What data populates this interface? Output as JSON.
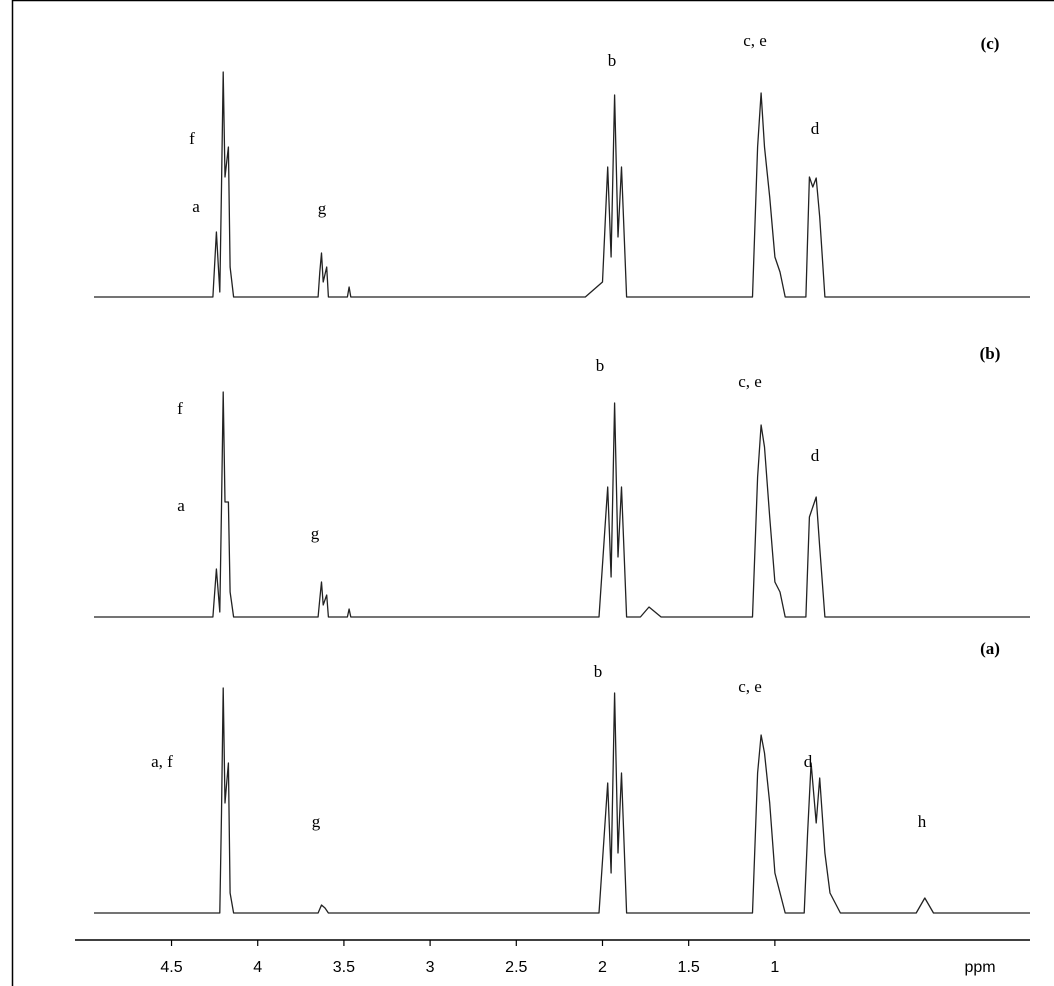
{
  "chart_data": [
    {
      "type": "line",
      "title": "(c)",
      "color": "#222",
      "ylim": [
        0,
        250
      ],
      "x": [
        4.95,
        4.26,
        4.24,
        4.22,
        4.21,
        4.2,
        4.19,
        4.17,
        4.16,
        4.14,
        3.65,
        3.64,
        3.63,
        3.62,
        3.6,
        3.59,
        3.48,
        3.47,
        3.46,
        2.1,
        2.0,
        1.97,
        1.95,
        1.93,
        1.91,
        1.89,
        1.86,
        1.13,
        1.1,
        1.08,
        1.06,
        1.03,
        1.0,
        0.97,
        0.94,
        0.82,
        0.8,
        0.78,
        0.76,
        0.74,
        0.71,
        -0.48
      ],
      "values": [
        0,
        0,
        65,
        5,
        110,
        225,
        120,
        150,
        30,
        0,
        0,
        25,
        44,
        15,
        30,
        0,
        0,
        10,
        0,
        0,
        15,
        130,
        40,
        202,
        60,
        130,
        0,
        0,
        150,
        204,
        150,
        100,
        40,
        25,
        0,
        0,
        120,
        110,
        119,
        80,
        0,
        0
      ],
      "annotations": [
        "f",
        "a",
        "g",
        "b",
        "c, e",
        "d"
      ]
    },
    {
      "type": "line",
      "title": "(b)",
      "color": "#222",
      "ylim": [
        0,
        250
      ],
      "x": [
        4.95,
        4.26,
        4.24,
        4.22,
        4.21,
        4.2,
        4.19,
        4.17,
        4.16,
        4.14,
        3.65,
        3.64,
        3.63,
        3.62,
        3.6,
        3.59,
        3.48,
        3.47,
        3.46,
        2.02,
        1.97,
        1.95,
        1.93,
        1.91,
        1.89,
        1.86,
        1.78,
        1.73,
        1.66,
        1.13,
        1.1,
        1.08,
        1.06,
        1.03,
        1.0,
        0.97,
        0.94,
        0.82,
        0.8,
        0.78,
        0.76,
        0.74,
        0.71,
        -0.48
      ],
      "values": [
        0,
        0,
        48,
        5,
        110,
        225,
        115,
        115,
        25,
        0,
        0,
        18,
        35,
        12,
        22,
        0,
        0,
        8,
        0,
        0,
        130,
        40,
        214,
        60,
        130,
        0,
        0,
        10,
        0,
        0,
        140,
        192,
        170,
        100,
        35,
        25,
        0,
        0,
        100,
        110,
        120,
        70,
        0,
        0
      ],
      "annotations": [
        "b",
        "f",
        "c, e",
        "d",
        "a",
        "g"
      ]
    },
    {
      "type": "line",
      "title": "(a)",
      "color": "#222",
      "ylim": [
        0,
        250
      ],
      "xlim": [
        5.06,
        -0.48
      ],
      "xticks": [
        4.5,
        4.0,
        3.5,
        3.0,
        2.5,
        2.0,
        1.5,
        1.0
      ],
      "xlabel": "ppm",
      "x": [
        4.95,
        4.22,
        4.21,
        4.2,
        4.19,
        4.17,
        4.16,
        4.14,
        3.65,
        3.63,
        3.61,
        3.59,
        2.02,
        1.97,
        1.95,
        1.93,
        1.91,
        1.89,
        1.86,
        1.13,
        1.1,
        1.08,
        1.06,
        1.03,
        1.0,
        0.94,
        0.83,
        0.81,
        0.79,
        0.76,
        0.74,
        0.71,
        0.68,
        0.62,
        0.18,
        0.13,
        0.08,
        -0.48
      ],
      "values": [
        0,
        0,
        100,
        225,
        110,
        150,
        20,
        0,
        0,
        8,
        5,
        0,
        0,
        130,
        40,
        220,
        60,
        140,
        0,
        0,
        140,
        178,
        160,
        110,
        40,
        0,
        0,
        80,
        150,
        90,
        135,
        60,
        20,
        0,
        0,
        15,
        0,
        0
      ],
      "annotations": [
        "b",
        "c, e",
        "a, f",
        "d",
        "g",
        "h"
      ]
    }
  ]
}
